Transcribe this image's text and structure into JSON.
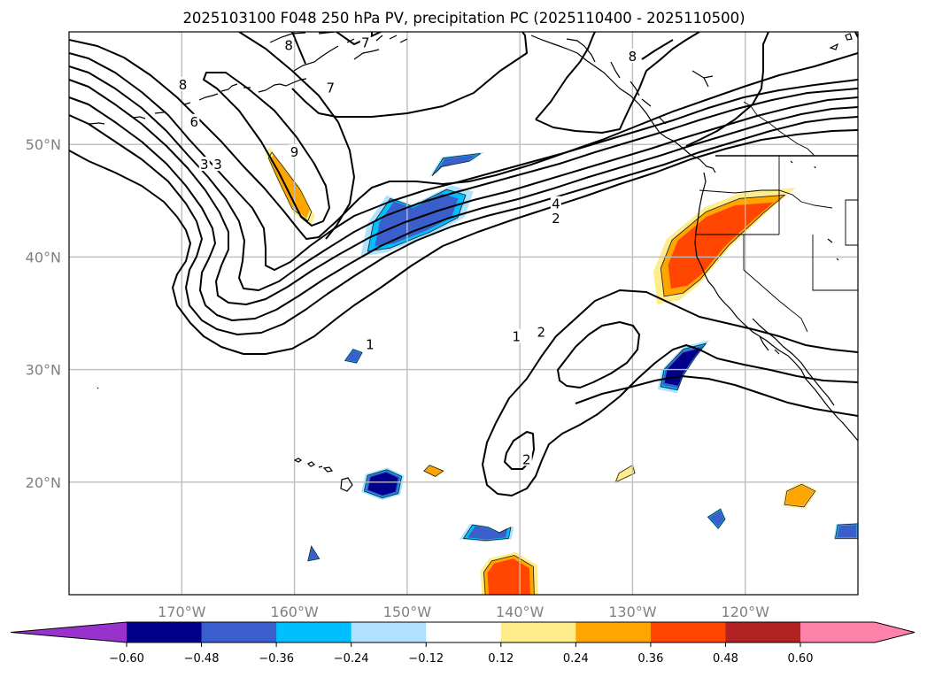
{
  "chart_data": {
    "type": "map-contour",
    "title": "2025103100 F048 250 hPa PV, precipitation PC (2025110400 - 2025110500)",
    "projection": "lat-lon map, North Pacific / western North America",
    "lon_range": [
      -180,
      -110
    ],
    "lat_range": [
      10,
      60
    ],
    "grid": true,
    "x_ticks": [
      {
        "lon": -170,
        "label": "170°W"
      },
      {
        "lon": -160,
        "label": "160°W"
      },
      {
        "lon": -150,
        "label": "150°W"
      },
      {
        "lon": -140,
        "label": "140°W"
      },
      {
        "lon": -130,
        "label": "130°W"
      },
      {
        "lon": -120,
        "label": "120°W"
      }
    ],
    "y_ticks": [
      {
        "lat": 50,
        "label": "50°N"
      },
      {
        "lat": 40,
        "label": "40°N"
      },
      {
        "lat": 30,
        "label": "30°N"
      },
      {
        "lat": 20,
        "label": "20°N"
      }
    ],
    "pv_contour_labels": [
      {
        "text": "7",
        "lon": -153.7,
        "lat": 59.0
      },
      {
        "text": "7",
        "lon": -156.8,
        "lat": 55.0
      },
      {
        "text": "8",
        "lon": -130.0,
        "lat": 57.8
      },
      {
        "text": "8",
        "lon": -160.5,
        "lat": 58.8
      },
      {
        "text": "8",
        "lon": -169.9,
        "lat": 55.3
      },
      {
        "text": "6",
        "lon": -168.9,
        "lat": 52.0
      },
      {
        "text": "9",
        "lon": -160.0,
        "lat": 49.3
      },
      {
        "text": "3",
        "lon": -168.0,
        "lat": 48.2
      },
      {
        "text": "3",
        "lon": -166.8,
        "lat": 48.2
      },
      {
        "text": "4",
        "lon": -136.8,
        "lat": 44.7
      },
      {
        "text": "2",
        "lon": -136.8,
        "lat": 43.4
      },
      {
        "text": "1",
        "lon": -153.3,
        "lat": 32.2
      },
      {
        "text": "1",
        "lon": -140.3,
        "lat": 32.9
      },
      {
        "text": "2",
        "lon": -138.1,
        "lat": 33.3
      },
      {
        "text": "2",
        "lon": -139.4,
        "lat": 22.0
      }
    ],
    "precip_pc_anomalies": [
      {
        "sign": "positive",
        "max_level": 0.36,
        "region": "Northern California / Oregon",
        "lon": -124.0,
        "lat": 40.0
      },
      {
        "sign": "positive",
        "max_level": 0.24,
        "region": "near Aleutians",
        "lon": -160.0,
        "lat": 46.5
      },
      {
        "sign": "positive",
        "max_level": 0.36,
        "region": "south edge",
        "lon": -141.0,
        "lat": 11.0
      },
      {
        "sign": "positive",
        "max_level": 0.24,
        "region": "east of Hawaii",
        "lon": -147.7,
        "lat": 21.0
      },
      {
        "sign": "positive",
        "max_level": 0.24,
        "region": "off Baja California",
        "lon": -115.5,
        "lat": 18.5
      },
      {
        "sign": "positive",
        "max_level": 0.12,
        "region": "central Pacific",
        "lon": -131.0,
        "lat": 20.8
      },
      {
        "sign": "negative",
        "min_level": -0.36,
        "region": "Gulf of Alaska south",
        "lon": -151.0,
        "lat": 44.0
      },
      {
        "sign": "negative",
        "min_level": -0.36,
        "region": "north of Gulf low",
        "lon": -146.0,
        "lat": 48.5
      },
      {
        "sign": "negative",
        "min_level": -0.48,
        "region": "off Baja California north",
        "lon": -126.0,
        "lat": 30.0
      },
      {
        "sign": "negative",
        "min_level": -0.48,
        "region": "northeast of Hawaii",
        "lon": -152.0,
        "lat": 19.6
      },
      {
        "sign": "negative",
        "min_level": -0.36,
        "region": "southeast of Hawaii",
        "lon": -143.5,
        "lat": 15.6
      },
      {
        "sign": "negative",
        "min_level": -0.36,
        "region": "central Pacific",
        "lon": -155.0,
        "lat": 31.3
      },
      {
        "sign": "negative",
        "min_level": -0.36,
        "region": "south of Hawaii",
        "lon": -158.5,
        "lat": 13.6
      },
      {
        "sign": "negative",
        "min_level": -0.36,
        "region": "southeast",
        "lon": -122.8,
        "lat": 17.0
      },
      {
        "sign": "negative",
        "min_level": -0.36,
        "region": "far southeast",
        "lon": -111.0,
        "lat": 15.7
      }
    ],
    "colorbar": {
      "orientation": "horizontal",
      "extend": "both",
      "boundaries": [
        -0.6,
        -0.48,
        -0.36,
        -0.24,
        -0.12,
        0.12,
        0.24,
        0.36,
        0.48,
        0.6
      ],
      "tick_labels": [
        "−0.60",
        "−0.48",
        "−0.36",
        "−0.24",
        "−0.12",
        "0.12",
        "0.24",
        "0.36",
        "0.48",
        "0.60"
      ],
      "colors": [
        "#9932cc",
        "#00008b",
        "#3a5fcd",
        "#00bfff",
        "#b0e2ff",
        "#ffffff",
        "#ffec8b",
        "#ffa500",
        "#ff4500",
        "#b22222",
        "#ff82ab"
      ]
    }
  }
}
